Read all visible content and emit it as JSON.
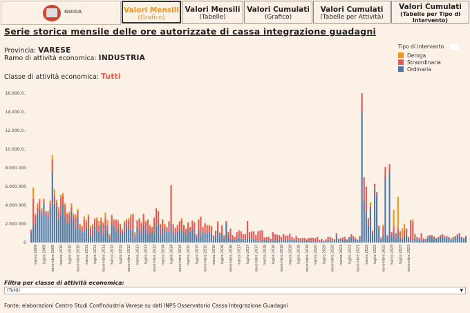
{
  "nav": {
    "logo_label": "GUIDA",
    "tabs": [
      {
        "label": "Valori Mensili",
        "sub": "(Grafico)",
        "active": true
      },
      {
        "label": "Valori Mensili",
        "sub": "(Tabelle)",
        "active": false
      },
      {
        "label": "Valori Cumulati",
        "sub": "(Grafico)",
        "active": false
      },
      {
        "label": "Valori Cumulati",
        "sub": "(Tabelle per Attività)",
        "active": false
      },
      {
        "label": "Valori Cumulati",
        "sub": "(Tabelle per Tipo di Intervento)",
        "active": false
      }
    ]
  },
  "page": {
    "title": "Serie storica mensile delle ore autorizzate di cassa integrazione guadagni",
    "provincia_label": "Provincia:",
    "provincia_value": "VARESE",
    "ramo_label": "Ramo di attività economica:",
    "ramo_value": "INDUSTRIA",
    "classe_label": "Classe di attività economica:",
    "classe_value": "Tutti"
  },
  "filter": {
    "label": "Filtra per classe di attività economica:",
    "value": "(Tutti)"
  },
  "source": "Fonte: elaborazioni Centro Studi Confindustria Varese su dati INPS Osservatorio Cassa Integrazione Guadagni",
  "colors": {
    "deroga": "#f0941f",
    "straordinaria": "#e05a57",
    "ordinaria": "#4e79a7"
  },
  "chart_data": {
    "type": "bar",
    "stacked": true,
    "legend_title": "Tipo di intervento",
    "series_names": [
      "Deroga",
      "Straordinaria",
      "Ordinaria"
    ],
    "yticks": [
      "16.000.0..",
      "14.000.0..",
      "12.000.0..",
      "10.000.0..",
      "8.000.000",
      "6.000.000",
      "4.000.000",
      "2.000.000",
      "0"
    ],
    "ylim": [
      0,
      16000000
    ],
    "xtick_labels": [
      "marzo 2009",
      "luglio 2009",
      "novembre 2009",
      "marzo 2010",
      "luglio 2010",
      "novembre 2010",
      "marzo 2011",
      "luglio 2011",
      "novembre 2011",
      "marzo 2012",
      "luglio 2012",
      "novembre 2012",
      "marzo 2013",
      "luglio 2013",
      "novembre 2013",
      "marzo 2014",
      "luglio 2014",
      "novembre 2014",
      "marzo 2015",
      "luglio 2015",
      "novembre 2015",
      "marzo 2016",
      "luglio 2016",
      "novembre 2016",
      "marzo 2017",
      "luglio 2017",
      "novembre 2017",
      "marzo 2018",
      "luglio 2018",
      "novembre 2018",
      "marzo 2019",
      "luglio 2019",
      "novembre 2019",
      "marzo 2020",
      "luglio 2020",
      "novembre 2020",
      "marzo 2021",
      "luglio 2021",
      "novembre 2021",
      "marzo 2022",
      "luglio 2022",
      "novembre 2022",
      "marzo 2023",
      "luglio 2023",
      "novembre 2023"
    ],
    "months_per_tick": 4,
    "first_month": "gennaio 2009",
    "ordinaria": [
      1000000,
      1700000,
      2100000,
      3000000,
      3500000,
      3000000,
      4200000,
      3000000,
      2700000,
      3800000,
      7500000,
      4200000,
      3800000,
      2500000,
      3000000,
      4000000,
      2800000,
      2000000,
      2200000,
      3300000,
      2500000,
      1500000,
      2700000,
      1400000,
      1100000,
      1200000,
      1600000,
      1500000,
      700000,
      800000,
      1700000,
      1300000,
      1200000,
      1900000,
      800000,
      1900000,
      1300000,
      400000,
      2000000,
      1700000,
      1200000,
      1500000,
      900000,
      1000000,
      1200000,
      1900000,
      1600000,
      1300000,
      1400000,
      500000,
      1600000,
      1300000,
      1000000,
      1900000,
      1400000,
      900000,
      1000000,
      1200000,
      1000000,
      1800000,
      2000000,
      900000,
      1600000,
      1300000,
      1100000,
      1200000,
      2000000,
      1100000,
      700000,
      1200000,
      1300000,
      1300000,
      1000000,
      900000,
      1300000,
      1200000,
      1400000,
      1000000,
      500000,
      1400000,
      700000,
      1100000,
      1000000,
      1000000,
      1200000,
      1000000,
      400000,
      700000,
      1300000,
      700000,
      1000000,
      400000,
      2100000,
      800000,
      300000,
      300000,
      300000,
      400000,
      500000,
      400000,
      400000,
      200000,
      400000,
      500000,
      300000,
      400000,
      300000,
      200000,
      100000,
      300000,
      250000,
      300000,
      200000,
      100000,
      200000,
      200000,
      250000,
      300000,
      200000,
      300000,
      250000,
      250000,
      350000,
      300000,
      250000,
      300000,
      200000,
      150000,
      300000,
      200000,
      150000,
      100000,
      200000,
      100000,
      150000,
      100000,
      100000,
      200000,
      100000,
      150000,
      300000,
      200000,
      150000,
      250000,
      800000,
      300000,
      200000,
      350000,
      300000,
      250000,
      500000,
      600000,
      400000,
      300000,
      200000,
      500000,
      14000000,
      4500000,
      3300000,
      1800000,
      3600000,
      1000000,
      5800000,
      5000000,
      1500000,
      350000,
      800000,
      7000000,
      600000,
      7500000,
      700000,
      900000,
      400000,
      1000000,
      500000,
      300000,
      700000,
      800000,
      400000,
      300000,
      200000,
      500000,
      400000,
      300000,
      200000,
      350000,
      300000,
      500000,
      700000,
      600000,
      500000,
      400000,
      500000,
      600000,
      700000,
      500000,
      600000,
      500000,
      300000,
      400000,
      600000,
      700000,
      800000,
      500000,
      400000,
      600000
    ],
    "straordinaria": [
      300000,
      3000000,
      800000,
      700000,
      1000000,
      400000,
      300000,
      300000,
      500000,
      400000,
      1300000,
      800000,
      500000,
      900000,
      1800000,
      1000000,
      1200000,
      1000000,
      800000,
      500000,
      400000,
      1200000,
      700000,
      500000,
      500000,
      1300000,
      600000,
      1300000,
      800000,
      1000000,
      800000,
      1200000,
      600000,
      500000,
      1200000,
      800000,
      500000,
      300000,
      900000,
      600000,
      1200000,
      700000,
      1000000,
      300000,
      900000,
      500000,
      700000,
      1500000,
      1600000,
      400000,
      700000,
      1200000,
      1000000,
      1100000,
      800000,
      1500000,
      700000,
      400000,
      1600000,
      1800000,
      1300000,
      1000000,
      800000,
      600000,
      500000,
      1000000,
      4100000,
      800000,
      800000,
      600000,
      900000,
      1200000,
      800000,
      500000,
      800000,
      400000,
      900000,
      1100000,
      300000,
      1000000,
      2000000,
      500000,
      1000000,
      800000,
      600000,
      700000,
      300000,
      500000,
      900000,
      300000,
      800000,
      300000,
      200000,
      300000,
      1200000,
      500000,
      300000,
      700000,
      800000,
      800000,
      500000,
      700000,
      1900000,
      600000,
      900000,
      800000,
      500000,
      1000000,
      1200000,
      1000000,
      300000,
      300000,
      400000,
      300000,
      900000,
      700000,
      600000,
      500000,
      400000,
      600000,
      500000,
      500000,
      600000,
      300000,
      200000,
      400000,
      300000,
      300000,
      200000,
      300000,
      200000,
      400000,
      300000,
      400000,
      300000,
      500000,
      200000,
      200000,
      100000,
      200000,
      300000,
      400000,
      300000,
      100000,
      200000,
      100000,
      300000,
      200000,
      300000,
      100000,
      100000,
      300000,
      300000,
      200000,
      100000,
      200000,
      2000000,
      2500000,
      2700000,
      800000,
      300000,
      200000,
      500000,
      400000,
      300000,
      200000,
      900000,
      1100000,
      200000,
      900000,
      400000,
      800000,
      600000,
      600000,
      700000,
      200000,
      600000,
      700000,
      200000,
      2100000,
      2000000,
      400000,
      200000,
      200000,
      800000,
      100000,
      100000,
      200000,
      100000,
      200000,
      150000,
      100000,
      100000,
      200000,
      200000,
      200000,
      100000,
      100000,
      150000,
      200000,
      100000,
      200000,
      200000,
      100000,
      100000,
      100000,
      100000,
      100000,
      100000,
      100000
    ],
    "deroga": [
      100000,
      1200000,
      200000,
      500000,
      200000,
      300000,
      200000,
      100000,
      200000,
      300000,
      600000,
      700000,
      300000,
      400000,
      300000,
      300000,
      200000,
      200000,
      300000,
      400000,
      200000,
      300000,
      200000,
      100000,
      200000,
      300000,
      200000,
      200000,
      300000,
      200000,
      100000,
      200000,
      500000,
      300000,
      200000,
      500000,
      600000,
      200000,
      100000,
      200000,
      100000,
      200000,
      100000,
      200000,
      200000,
      100000,
      300000,
      200000,
      100000,
      200000,
      100000,
      100000,
      200000,
      100000,
      100000,
      100000,
      200000,
      100000,
      100000,
      100000,
      100000,
      100000,
      100000,
      100000,
      100000,
      100000,
      100000,
      100000,
      100000,
      100000,
      100000,
      100000,
      100000,
      100000,
      100000,
      100000,
      100000,
      100000,
      100000,
      100000,
      100000,
      100000,
      100000,
      100000,
      100000,
      100000,
      100000,
      100000,
      100000,
      100000,
      100000,
      100000,
      0,
      0,
      0,
      0,
      0,
      0,
      0,
      0,
      0,
      0,
      0,
      0,
      0,
      0,
      0,
      0,
      0,
      0,
      0,
      0,
      0,
      0,
      0,
      0,
      0,
      0,
      0,
      0,
      0,
      0,
      0,
      0,
      0,
      0,
      0,
      0,
      0,
      0,
      0,
      0,
      0,
      0,
      0,
      0,
      0,
      0,
      0,
      0,
      0,
      0,
      0,
      0,
      0,
      0,
      0,
      0,
      0,
      0,
      0,
      0,
      0,
      0,
      0,
      0,
      0,
      0,
      0,
      0,
      400000,
      100000,
      0,
      0,
      0,
      0,
      200000,
      0,
      0,
      0,
      0,
      1800000,
      0,
      3300000,
      0,
      1000000,
      700000,
      0,
      0,
      0,
      300000,
      0,
      0,
      0,
      0,
      0,
      0,
      0,
      0,
      0,
      0,
      0,
      0,
      0,
      0,
      0,
      0,
      0,
      0,
      0,
      0,
      0,
      0,
      0,
      0,
      0,
      0,
      0,
      0,
      0,
      0,
      0,
      0,
      0
    ]
  }
}
